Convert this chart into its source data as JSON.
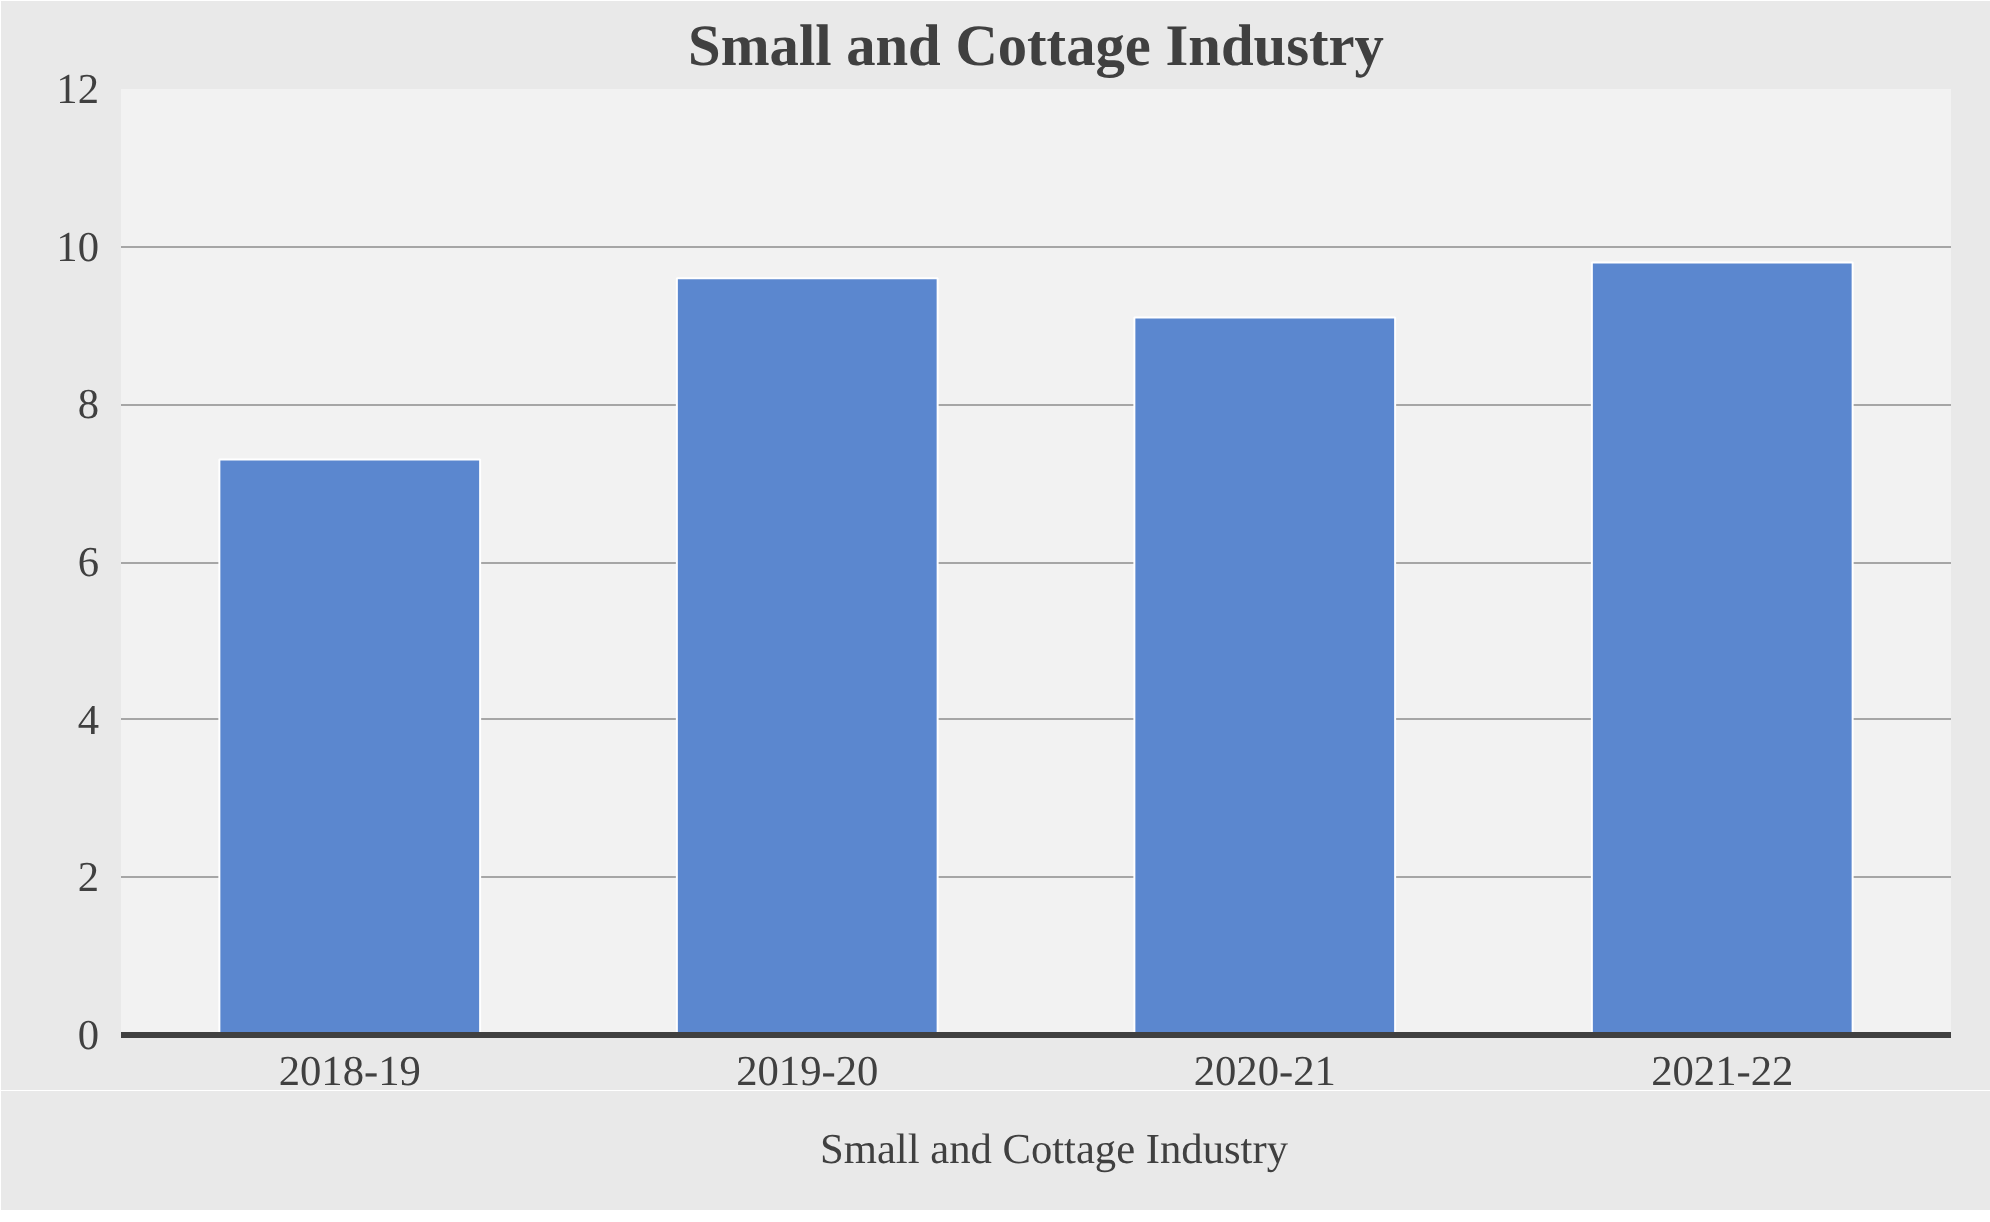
{
  "chart_data": {
    "type": "bar",
    "title": "Small and Cottage Industry",
    "categories": [
      "2018-19",
      "2019-20",
      "2020-21",
      "2021-22"
    ],
    "series": [
      {
        "name": "Small and Cottage Industry",
        "color": "#5b87cf",
        "values": [
          7.3,
          9.6,
          9.1,
          9.8
        ]
      }
    ],
    "ylim": [
      0,
      12
    ],
    "yticks": [
      0,
      2,
      4,
      6,
      8,
      10,
      12
    ],
    "grid": "y",
    "legend": "bottom"
  }
}
